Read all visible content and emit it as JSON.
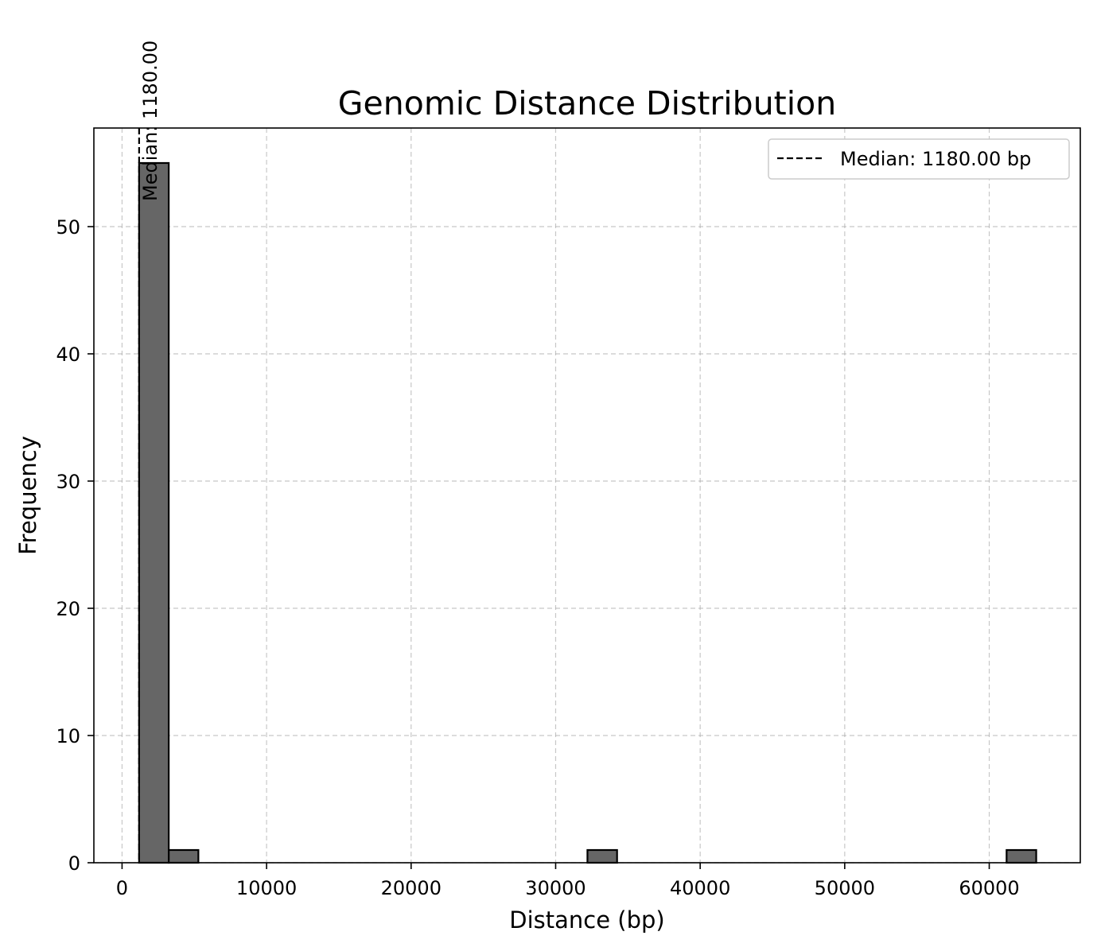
{
  "chart_data": {
    "type": "bar",
    "title": "Genomic Distance Distribution",
    "xlabel": "Distance (bp)",
    "ylabel": "Frequency",
    "xlim": [
      -1950,
      66300
    ],
    "ylim": [
      0,
      57.75
    ],
    "xticks": [
      0,
      10000,
      20000,
      30000,
      40000,
      50000,
      60000
    ],
    "xtick_labels": [
      "0",
      "10000",
      "20000",
      "30000",
      "40000",
      "50000",
      "60000"
    ],
    "yticks": [
      0,
      10,
      20,
      30,
      40,
      50
    ],
    "ytick_labels": [
      "0",
      "10",
      "20",
      "30",
      "40",
      "50"
    ],
    "grid": true,
    "bars": [
      {
        "x0": 1180,
        "x1": 3230,
        "value": 55
      },
      {
        "x0": 3230,
        "x1": 5280,
        "value": 1
      },
      {
        "x0": 32200,
        "x1": 34250,
        "value": 1
      },
      {
        "x0": 61200,
        "x1": 63250,
        "value": 1
      }
    ],
    "bar_color": "#666666",
    "median": {
      "value": 1180,
      "annotation": "Median: 1180.00"
    },
    "legend": {
      "position": "top-right",
      "entries": [
        "Median: 1180.00 bp"
      ]
    }
  }
}
